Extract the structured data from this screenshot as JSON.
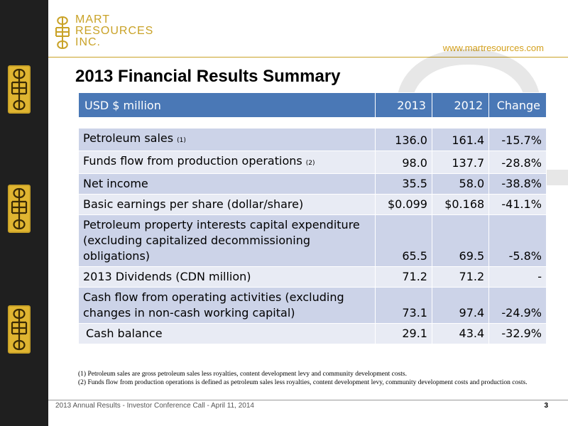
{
  "brand": {
    "lines": [
      "MART",
      "RESOURCES",
      "INC."
    ],
    "url": "www.martresources.com",
    "accent_color": "#c9a227"
  },
  "slide": {
    "title": "2013 Financial Results Summary",
    "page_number": "3",
    "footer": "2013 Annual  Results - Investor Conference Call - April 11, 2014"
  },
  "table": {
    "header": {
      "label": "USD $ million",
      "col2013": "2013",
      "col2012": "2012",
      "change": "Change"
    },
    "header_color": "#4a78b6",
    "rows": [
      {
        "label": "Petroleum sales ",
        "note": "(1)",
        "v2013": "136.0",
        "v2012": "161.4",
        "change": "-15.7%"
      },
      {
        "label": "Funds flow from production operations ",
        "note": "(2)",
        "v2013": "98.0",
        "v2012": "137.7",
        "change": "-28.8%"
      },
      {
        "label": "Net income",
        "note": "",
        "v2013": "35.5",
        "v2012": "58.0",
        "change": "-38.8%"
      },
      {
        "label": "Basic earnings per share (dollar/share)",
        "note": "",
        "v2013": "$0.099",
        "v2012": "$0.168",
        "change": "-41.1%"
      },
      {
        "label": "Petroleum property interests capital expenditure (excluding capitalized decommissioning obligations)",
        "note": "",
        "v2013": "65.5",
        "v2012": "69.5",
        "change": "-5.8%"
      },
      {
        "label": "2013 Dividends (CDN million)",
        "note": "",
        "v2013": "71.2",
        "v2012": "71.2",
        "change": "-"
      },
      {
        "label": "Cash flow from operating activities (excluding changes in non-cash working capital)",
        "note": "",
        "v2013": "73.1",
        "v2012": "97.4",
        "change": "-24.9%"
      },
      {
        "label": "Cash balance",
        "note": "",
        "v2013": "29.1",
        "v2012": "43.4",
        "change": "-32.9%"
      }
    ]
  },
  "footnotes": [
    "(1)   Petroleum sales are gross petroleum sales less royalties, content development levy and community development costs.",
    "(2)   Funds flow from production operations  is defined as petroleum sales less royalties, content development levy, community development costs and production costs."
  ]
}
